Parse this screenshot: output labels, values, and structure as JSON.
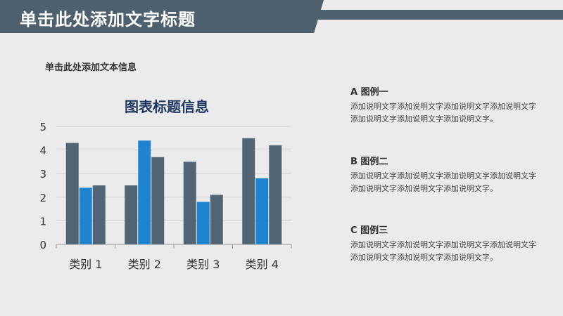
{
  "header": {
    "title": "单击此处添加文字标题"
  },
  "subtitle": "单击此处添加文本信息",
  "colors": {
    "dark": "#526575",
    "blue": "#1f84cf",
    "header": "#4e5f6e"
  },
  "legend": [
    {
      "heading": "A  图例一",
      "body": "添加说明文字添加说明文字添加说明文字添加说明文字添加说明文字添加说明文字添加说明文字。"
    },
    {
      "heading": "B  图例二",
      "body": "添加说明文字添加说明文字添加说明文字添加说明文字添加说明文字添加说明文字添加说明文字。"
    },
    {
      "heading": "C  图例三",
      "body": "添加说明文字添加说明文字添加说明文字添加说明文字添加说明文字添加说明文字添加说明文字。"
    }
  ],
  "chart_data": {
    "type": "bar",
    "title": "图表标题信息",
    "categories": [
      "类别 1",
      "类别 2",
      "类别 3",
      "类别 4"
    ],
    "series": [
      {
        "values": [
          4.3,
          2.5,
          3.5,
          4.5
        ],
        "color": "#526575"
      },
      {
        "values": [
          2.4,
          4.4,
          1.8,
          2.8
        ],
        "color": "#1f84cf"
      },
      {
        "values": [
          2.5,
          3.7,
          2.1,
          4.2
        ],
        "color": "#526575"
      }
    ],
    "ylim": [
      0,
      5
    ],
    "yticks": [
      "0",
      "1",
      "2",
      "3",
      "4",
      "5"
    ],
    "grid": true,
    "legend": "none"
  }
}
